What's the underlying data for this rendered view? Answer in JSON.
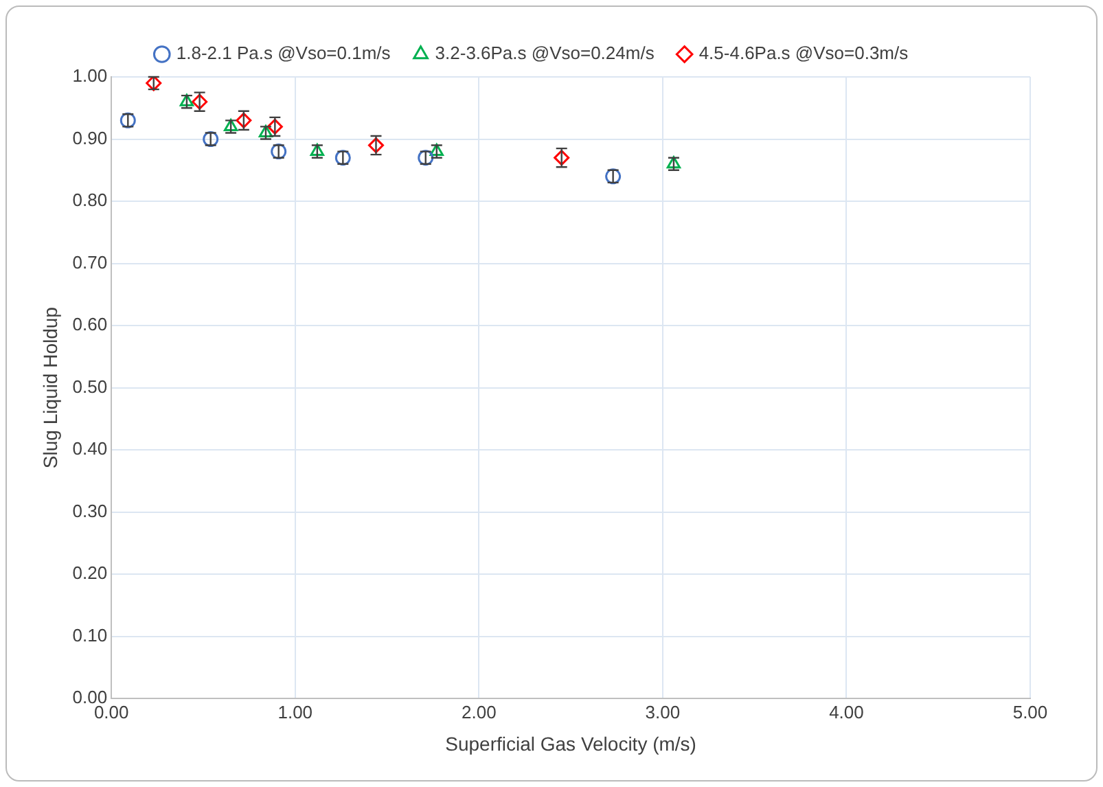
{
  "chart_data": {
    "type": "scatter",
    "xlabel": "Superficial Gas Velocity (m/s)",
    "ylabel": "Slug Liquid Holdup",
    "xlim": [
      0,
      5
    ],
    "xticks": [
      {
        "value": 0,
        "label": "0.00"
      },
      {
        "value": 1,
        "label": "1.00"
      },
      {
        "value": 2,
        "label": "2.00"
      },
      {
        "value": 3,
        "label": "3.00"
      },
      {
        "value": 4,
        "label": "4.00"
      },
      {
        "value": 5,
        "label": "5.00"
      }
    ],
    "ylim": [
      0,
      1
    ],
    "yticks": [
      {
        "value": 0,
        "label": "0.00"
      },
      {
        "value": 0.1,
        "label": "0.10"
      },
      {
        "value": 0.2,
        "label": "0.20"
      },
      {
        "value": 0.3,
        "label": "0.30"
      },
      {
        "value": 0.4,
        "label": "0.40"
      },
      {
        "value": 0.5,
        "label": "0.50"
      },
      {
        "value": 0.6,
        "label": "0.60"
      },
      {
        "value": 0.7,
        "label": "0.70"
      },
      {
        "value": 0.8,
        "label": "0.80"
      },
      {
        "value": 0.9,
        "label": "0.90"
      },
      {
        "value": 1,
        "label": "1.00"
      }
    ],
    "grid": true,
    "legend": "top",
    "series": [
      {
        "name": "1.8-2.1 Pa.s @Vso=0.1m/s",
        "color": "#4472c4",
        "marker": "circle",
        "x": [
          0.09,
          0.54,
          0.91,
          1.26,
          1.71,
          2.73
        ],
        "values": [
          0.93,
          0.9,
          0.88,
          0.87,
          0.87,
          0.84
        ],
        "errors": [
          0.01,
          0.01,
          0.01,
          0.01,
          0.01,
          0.01
        ]
      },
      {
        "name": "3.2-3.6Pa.s @Vso=0.24m/s",
        "color": "#00b050",
        "marker": "triangle",
        "x": [
          0.41,
          0.65,
          0.84,
          1.12,
          1.77,
          3.06
        ],
        "values": [
          0.96,
          0.92,
          0.91,
          0.88,
          0.88,
          0.86
        ],
        "errors": [
          0.01,
          0.01,
          0.01,
          0.01,
          0.01,
          0.01
        ]
      },
      {
        "name": "4.5-4.6Pa.s @Vso=0.3m/s",
        "color": "#ff0000",
        "marker": "diamond",
        "x": [
          0.23,
          0.48,
          0.72,
          0.89,
          1.44,
          2.45
        ],
        "values": [
          0.99,
          0.96,
          0.93,
          0.92,
          0.89,
          0.87
        ],
        "errors": [
          0.01,
          0.015,
          0.015,
          0.015,
          0.015,
          0.015
        ]
      }
    ]
  }
}
